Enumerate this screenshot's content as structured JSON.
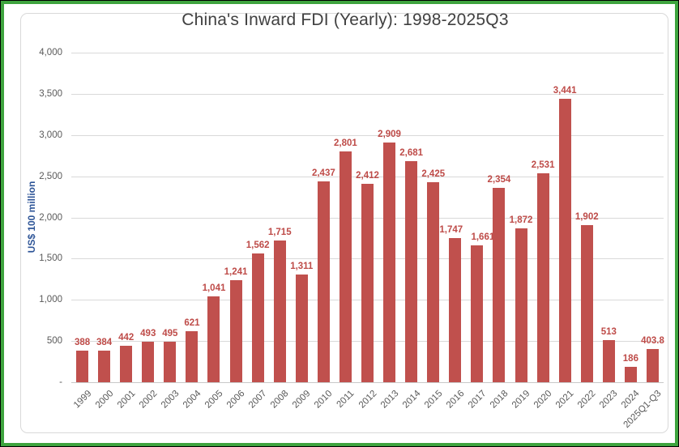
{
  "chart_data": {
    "type": "bar",
    "title": "China's Inward FDI (Yearly): 1998-2025Q3",
    "ylabel": "US$ 100 million",
    "xlabel": "",
    "categories": [
      "1999",
      "2000",
      "2001",
      "2002",
      "2003",
      "2004",
      "2005",
      "2006",
      "2007",
      "2008",
      "2009",
      "2010",
      "2011",
      "2012",
      "2013",
      "2014",
      "2015",
      "2016",
      "2017",
      "2018",
      "2019",
      "2020",
      "2021",
      "2022",
      "2023",
      "2024",
      "2025Q1-Q3"
    ],
    "values": [
      388,
      384,
      442,
      493,
      495,
      621,
      1041,
      1241,
      1562,
      1715,
      1311,
      2437,
      2801,
      2412,
      2909,
      2681,
      2425,
      1747,
      1661,
      2354,
      1872,
      2531,
      3441,
      1902,
      513,
      186,
      403.8
    ],
    "data_labels": [
      "388",
      "384",
      "442",
      "493",
      "495",
      "621",
      "1,041",
      "1,241",
      "1,562",
      "1,715",
      "1,311",
      "2,437",
      "2,801",
      "2,412",
      "2,909",
      "2,681",
      "2,425",
      "1,747",
      "1,661",
      "2,354",
      "1,872",
      "2,531",
      "3,441",
      "1,902",
      "513",
      "186",
      "403.8"
    ],
    "ylim": [
      0,
      4000
    ],
    "ytick_step": 500,
    "ytick_labels_bottom_up": [
      "-",
      "500",
      "1,000",
      "1,500",
      "2,000",
      "2,500",
      "3,000",
      "3,500",
      "4,000"
    ],
    "grid": true,
    "legend_position": "none"
  },
  "colors": {
    "frame_green": "#3EA43E",
    "outer_edge": "#000000",
    "background": "#FFFFFF",
    "bar": "#C0504D",
    "data_label": "#BE4B48",
    "axis_text": "#595959",
    "y_axis_title": "#2E5597",
    "gridline": "#D9D9D9",
    "title_text": "#404040"
  }
}
